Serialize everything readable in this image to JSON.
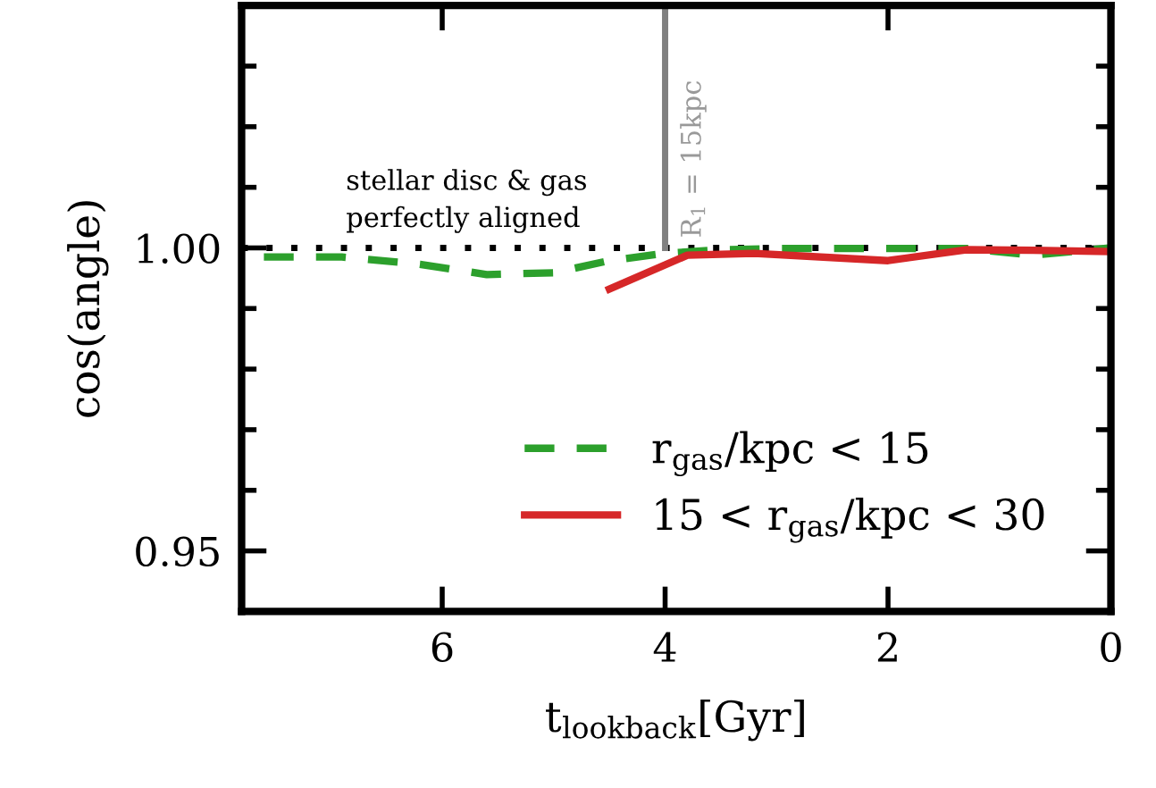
{
  "chart_data": {
    "type": "line",
    "xlabel": "t$_{lookback}$[Gyr]",
    "ylabel": "cos(angle)",
    "xlim": [
      7.8,
      0
    ],
    "xticks": [
      6,
      4,
      2,
      0
    ],
    "ylim": [
      0.94,
      1.04
    ],
    "yticks": [
      0.95,
      {
        "value": 0.96,
        "label": null
      },
      {
        "value": 0.97,
        "label": null
      },
      {
        "value": 0.98,
        "label": null
      },
      {
        "value": 0.99,
        "label": null
      },
      {
        "value": 1.0,
        "label": "1.00"
      },
      {
        "value": 1.01,
        "label": null
      },
      {
        "value": 1.02,
        "label": null
      },
      {
        "value": 1.03,
        "label": null
      }
    ],
    "series": [
      {
        "name": "r$_{gas}$/kpc < 15",
        "color": "#2ca02c",
        "line_style": "dashed",
        "x": [
          7.6,
          6.9,
          6.2,
          5.6,
          5.0,
          4.5,
          4.0,
          3.5,
          3.0,
          2.0,
          1.3,
          0.7,
          0.0
        ],
        "values": [
          0.9985,
          0.9985,
          0.9973,
          0.9956,
          0.9959,
          0.9979,
          0.9991,
          0.9997,
          0.9999,
          0.9999,
          0.9999,
          0.9988,
          1.0
        ]
      },
      {
        "name": "15 < r$_{gas}$/kpc < 30",
        "color": "#d62728",
        "line_style": "solid",
        "x": [
          4.5,
          3.8,
          3.2,
          2.0,
          1.3,
          0.7,
          0.0
        ],
        "values": [
          0.9932,
          0.9988,
          0.9991,
          0.9979,
          0.9997,
          0.9996,
          0.9994
        ]
      },
      {
        "color": "#808080",
        "line_style": "solid",
        "x": [
          4,
          4
        ],
        "values": [
          1.0,
          1.04
        ]
      }
    ],
    "ref_lines": [
      {
        "axis": "y",
        "value": 1.0,
        "label": "stellar disc & gas\nperfectly aligned",
        "color": "#000000",
        "line_style": "dotted"
      }
    ],
    "annotations": [
      "R$_{1}$ = 15kpc"
    ],
    "legend": "bottom right",
    "grid": false
  }
}
